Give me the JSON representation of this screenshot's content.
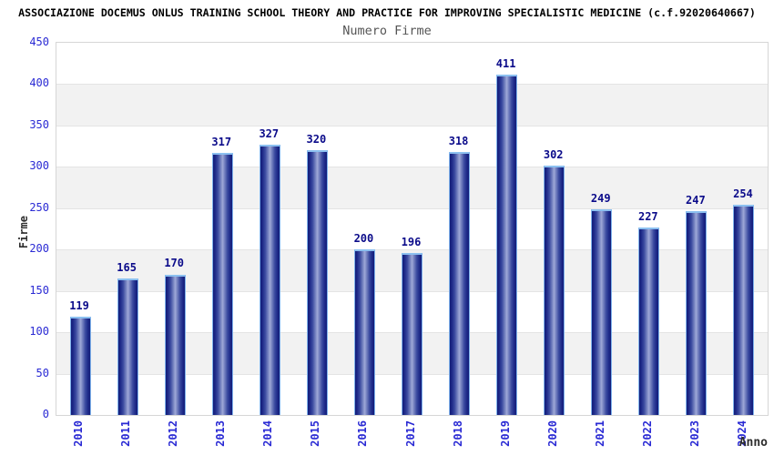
{
  "title": "ASSOCIAZIONE DOCEMUS ONLUS TRAINING SCHOOL THEORY AND PRACTICE FOR IMPROVING SPECIALISTIC MEDICINE (c.f.92020640667)",
  "subtitle": "Numero Firme",
  "chart_data": {
    "type": "bar",
    "title": "Numero Firme",
    "categories": [
      "2010",
      "2011",
      "2012",
      "2013",
      "2014",
      "2015",
      "2016",
      "2017",
      "2018",
      "2019",
      "2020",
      "2021",
      "2022",
      "2023",
      "2024"
    ],
    "values": [
      119,
      165,
      170,
      317,
      327,
      320,
      200,
      196,
      318,
      411,
      302,
      249,
      227,
      247,
      254
    ],
    "xlabel": "Anno",
    "ylabel": "Firme",
    "ylim": [
      0,
      450
    ],
    "ytick_step": 50,
    "yticks": [
      0,
      50,
      100,
      150,
      200,
      250,
      300,
      350,
      400,
      450
    ],
    "legend": "none",
    "grid": "horizontal-bands-alternating",
    "colors": {
      "bar_dark": "#131d78",
      "bar_light": "#9fa9d8",
      "bar_outline": "#7fb2ec",
      "tick_label": "#2a2ad4",
      "value_label": "#0b0b8a",
      "band_gray": "#f2f2f2",
      "band_white": "#ffffff",
      "plot_border": "#d6d6d6",
      "title_color": "#000000",
      "subtitle_color": "#555555",
      "axis_title_color": "#2d2d2d"
    }
  }
}
